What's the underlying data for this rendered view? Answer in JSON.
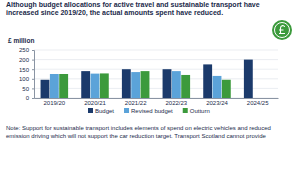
{
  "chart_data": {
    "type": "bar",
    "title": "Although budget allocations for active travel and sustainable transport have increased since 2019/20, the actual amounts spent have reduced.",
    "y_label": "£ million",
    "categories": [
      "2019/20",
      "2020/21",
      "2021/22",
      "2022/23",
      "2023/24",
      "2024/25"
    ],
    "series": [
      {
        "name": "Budget",
        "color": "#1b3a6b",
        "values": [
          95,
          140,
          150,
          150,
          175,
          200
        ]
      },
      {
        "name": "Revised budget",
        "color": "#5ba3d9",
        "values": [
          125,
          127,
          135,
          140,
          115,
          null
        ]
      },
      {
        "name": "Outturn",
        "color": "#3c9a3c",
        "values": [
          125,
          128,
          140,
          120,
          95,
          null
        ]
      }
    ],
    "ylim": [
      0,
      250
    ],
    "yticks": [
      0,
      50,
      100,
      150,
      200,
      250
    ],
    "grid": true,
    "legend": "bottom",
    "note": "Note: Support for sustainable transport includes elements of spend on electric vehicles and reduced emission driving which will not support the car reduction target. Transport Scotland cannot provide"
  }
}
